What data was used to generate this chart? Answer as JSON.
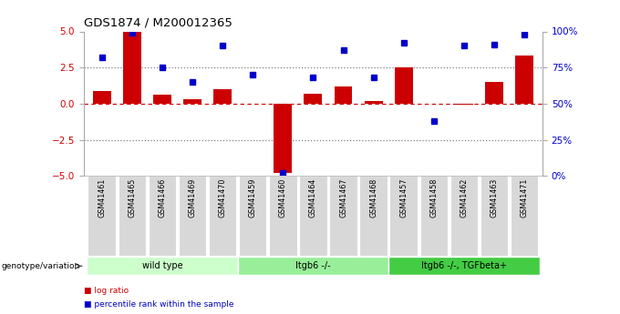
{
  "title": "GDS1874 / M200012365",
  "samples": [
    "GSM41461",
    "GSM41465",
    "GSM41466",
    "GSM41469",
    "GSM41470",
    "GSM41459",
    "GSM41460",
    "GSM41464",
    "GSM41467",
    "GSM41468",
    "GSM41457",
    "GSM41458",
    "GSM41462",
    "GSM41463",
    "GSM41471"
  ],
  "log_ratio": [
    0.9,
    5.0,
    0.6,
    0.3,
    1.0,
    0.0,
    -4.8,
    0.7,
    1.2,
    0.2,
    2.5,
    0.0,
    -0.1,
    1.5,
    3.3
  ],
  "pct_rank": [
    82,
    99,
    75,
    65,
    90,
    70,
    2,
    68,
    87,
    68,
    92,
    38,
    90,
    91,
    98
  ],
  "groups": [
    {
      "label": "wild type",
      "start": 0,
      "end": 5,
      "color": "#ccffcc"
    },
    {
      "label": "Itgb6 -/-",
      "start": 5,
      "end": 10,
      "color": "#99ee99"
    },
    {
      "label": "Itgb6 -/-, TGFbeta+",
      "start": 10,
      "end": 15,
      "color": "#44cc44"
    }
  ],
  "bar_color": "#cc0000",
  "dot_color": "#0000cc",
  "ylim_left": [
    -5,
    5
  ],
  "ylim_right": [
    0,
    100
  ],
  "yticks_left": [
    -5,
    -2.5,
    0,
    2.5,
    5
  ],
  "yticks_right": [
    0,
    25,
    50,
    75,
    100
  ],
  "ytick_labels_right": [
    "0%",
    "25%",
    "50%",
    "75%",
    "100%"
  ],
  "legend_items": [
    "log ratio",
    "percentile rank within the sample"
  ],
  "legend_colors": [
    "#cc0000",
    "#0000cc"
  ],
  "genotype_label": "genotype/variation"
}
